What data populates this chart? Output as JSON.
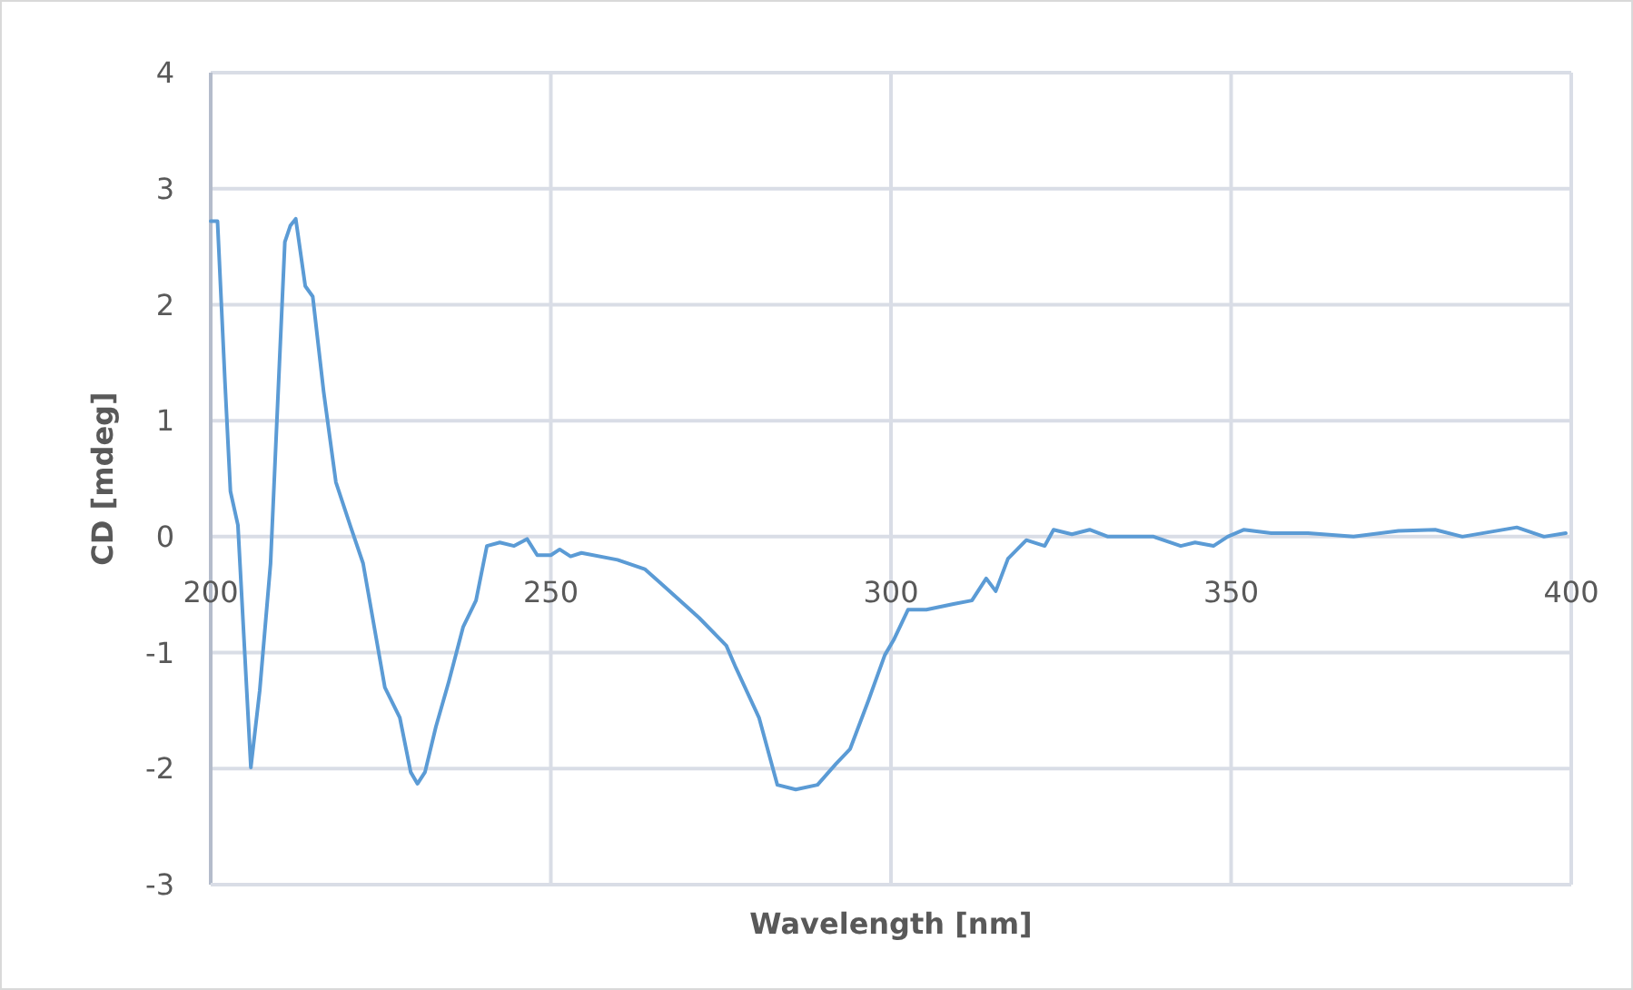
{
  "chart_data": {
    "type": "line",
    "xlabel": "Wavelength [nm]",
    "ylabel": "CD [mdeg]",
    "xlim": [
      200,
      400
    ],
    "xticks": [
      200,
      250,
      300,
      350,
      400
    ],
    "ylim": [
      -3,
      4
    ],
    "yticks": [
      -3,
      -2,
      -1,
      0,
      1,
      2,
      3,
      4
    ],
    "grid": true,
    "series": [
      {
        "color": "#5b9bd5",
        "x": [
          200,
          201,
          202.1,
          202.9,
          204,
          205.9,
          207.2,
          208.8,
          210.1,
          210.9,
          211.7,
          212.5,
          213.9,
          215,
          216.6,
          218.4,
          220.6,
          222.4,
          225.6,
          227.8,
          229.4,
          230.4,
          231.5,
          233.1,
          235,
          237.1,
          239,
          240.6,
          242.5,
          244.6,
          246.5,
          248,
          250,
          251.3,
          252.9,
          254.5,
          259.8,
          263.8,
          266.5,
          271.8,
          275.8,
          277.2,
          280.6,
          283.3,
          286,
          289.2,
          291.9,
          294,
          296.7,
          299.1,
          300.4,
          302.5,
          305.2,
          309.2,
          311.9,
          314,
          315.4,
          317.2,
          319.9,
          322.6,
          323.9,
          326.6,
          329.2,
          331.9,
          338.6,
          342.6,
          344.7,
          347.4,
          349.5,
          351.9,
          355.9,
          361.3,
          368,
          374.6,
          380,
          384,
          392,
          396,
          399.2
        ],
        "values": [
          2.72,
          2.72,
          1.33,
          0.39,
          0.1,
          -1.99,
          -1.33,
          -0.23,
          1.49,
          2.54,
          2.68,
          2.74,
          2.16,
          2.07,
          1.25,
          0.47,
          0.08,
          -0.23,
          -1.3,
          -1.56,
          -2.03,
          -2.13,
          -2.03,
          -1.64,
          -1.25,
          -0.78,
          -0.55,
          -0.08,
          -0.05,
          -0.08,
          -0.02,
          -0.16,
          -0.16,
          -0.11,
          -0.17,
          -0.14,
          -0.2,
          -0.28,
          -0.42,
          -0.7,
          -0.94,
          -1.13,
          -1.56,
          -2.14,
          -2.18,
          -2.14,
          -1.96,
          -1.83,
          -1.41,
          -1.02,
          -0.89,
          -0.63,
          -0.63,
          -0.58,
          -0.55,
          -0.36,
          -0.47,
          -0.19,
          -0.03,
          -0.08,
          0.06,
          0.02,
          0.06,
          0,
          0,
          -0.08,
          -0.05,
          -0.08,
          0,
          0.06,
          0.03,
          0.03,
          0,
          0.05,
          0.06,
          0,
          0.08,
          0,
          0.03
        ]
      }
    ]
  }
}
